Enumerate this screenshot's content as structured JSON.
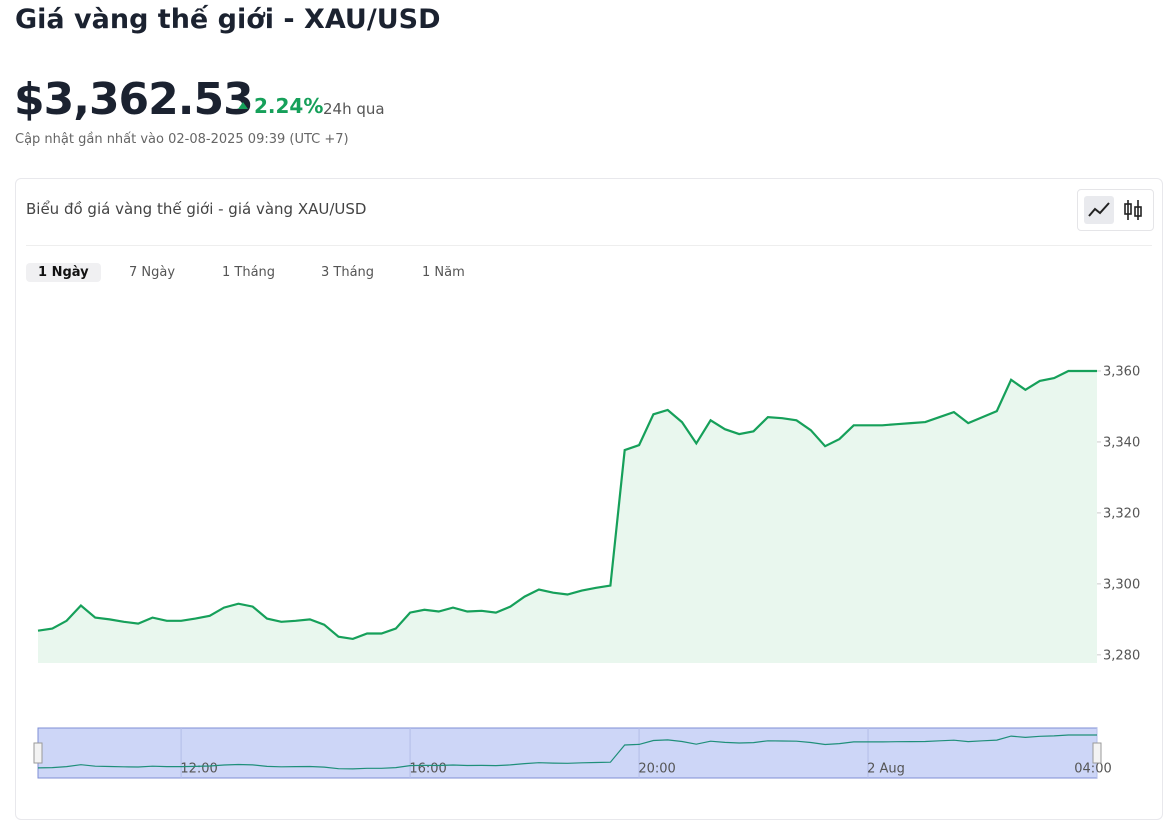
{
  "header": {
    "title": "Giá vàng thế giới - XAU/USD",
    "price": "$3,362.53",
    "change": "2.24%",
    "period": "24h qua",
    "updated": "Cập nhật gần nhất vào 02-08-2025 09:39 (UTC +7)"
  },
  "card": {
    "title": "Biểu đồ giá vàng thế giới - giá vàng XAU/USD",
    "tabs": [
      "1 Ngày",
      "7 Ngày",
      "1 Tháng",
      "3 Tháng",
      "1 Năm"
    ],
    "active_tab": 0
  },
  "chart_data": {
    "type": "line",
    "color": "#16a05a",
    "fill": "#e9f7ee",
    "x": [
      "09:30",
      "09:45",
      "10:00",
      "10:15",
      "10:30",
      "10:45",
      "11:00",
      "11:15",
      "11:30",
      "11:45",
      "12:00",
      "12:15",
      "12:30",
      "12:45",
      "13:00",
      "13:15",
      "13:30",
      "13:45",
      "14:00",
      "14:15",
      "14:30",
      "14:45",
      "15:00",
      "15:15",
      "15:30",
      "15:45",
      "16:00",
      "16:15",
      "16:30",
      "16:45",
      "17:00",
      "17:15",
      "17:30",
      "17:45",
      "18:00",
      "18:15",
      "18:30",
      "18:45",
      "19:00",
      "19:15",
      "19:30",
      "19:45",
      "20:00",
      "20:15",
      "20:30",
      "20:45",
      "21:00",
      "21:15",
      "21:30",
      "21:45",
      "22:00",
      "22:15",
      "22:30",
      "22:45",
      "23:00",
      "23:15",
      "23:30",
      "23:45",
      "00:00",
      "00:15",
      "00:30",
      "00:45",
      "01:00",
      "01:15",
      "01:30",
      "01:45",
      "02:00",
      "02:15",
      "02:30",
      "02:45",
      "03:00",
      "03:15",
      "03:30",
      "03:45",
      "04:00"
    ],
    "values": [
      3286.8,
      3287.4,
      3289.6,
      3293.9,
      3290.5,
      3290,
      3289.3,
      3288.8,
      3290.5,
      3289.6,
      3289.6,
      3290.2,
      3291,
      3293.3,
      3294.4,
      3293.6,
      3290.2,
      3289.3,
      3289.6,
      3290,
      3288.5,
      3285.1,
      3284.5,
      3286,
      3286,
      3287.4,
      3291.9,
      3292.7,
      3292.2,
      3293.3,
      3292.2,
      3292.4,
      3291.9,
      3293.6,
      3296.4,
      3298.4,
      3297.5,
      3297,
      3298.1,
      3298.9,
      3299.5,
      3337.7,
      3339.1,
      3347.8,
      3349,
      3345.6,
      3339.6,
      3346.1,
      3343.6,
      3342.2,
      3343,
      3347,
      3346.7,
      3346.1,
      3343.3,
      3338.8,
      3340.8,
      3344.7,
      3344.7,
      3344.7,
      3345,
      3345.3,
      3345.6,
      3347,
      3348.4,
      3345.3,
      3347,
      3348.7,
      3357.5,
      3354.7,
      3357.2,
      3358,
      3360,
      3360,
      3360
    ],
    "ylim": [
      3277.7,
      3380
    ],
    "yticks": [
      {
        "value": 3280,
        "label": "3,280"
      },
      {
        "value": 3300,
        "label": "3,300"
      },
      {
        "value": 3320,
        "label": "3,320"
      },
      {
        "value": 3340,
        "label": "3,340"
      },
      {
        "value": 3360,
        "label": "3,360"
      }
    ],
    "xticks": [
      "12:00",
      "16:00",
      "20:00",
      {
        "value": "00:00",
        "label": "2 Aug"
      },
      "04:00"
    ]
  }
}
